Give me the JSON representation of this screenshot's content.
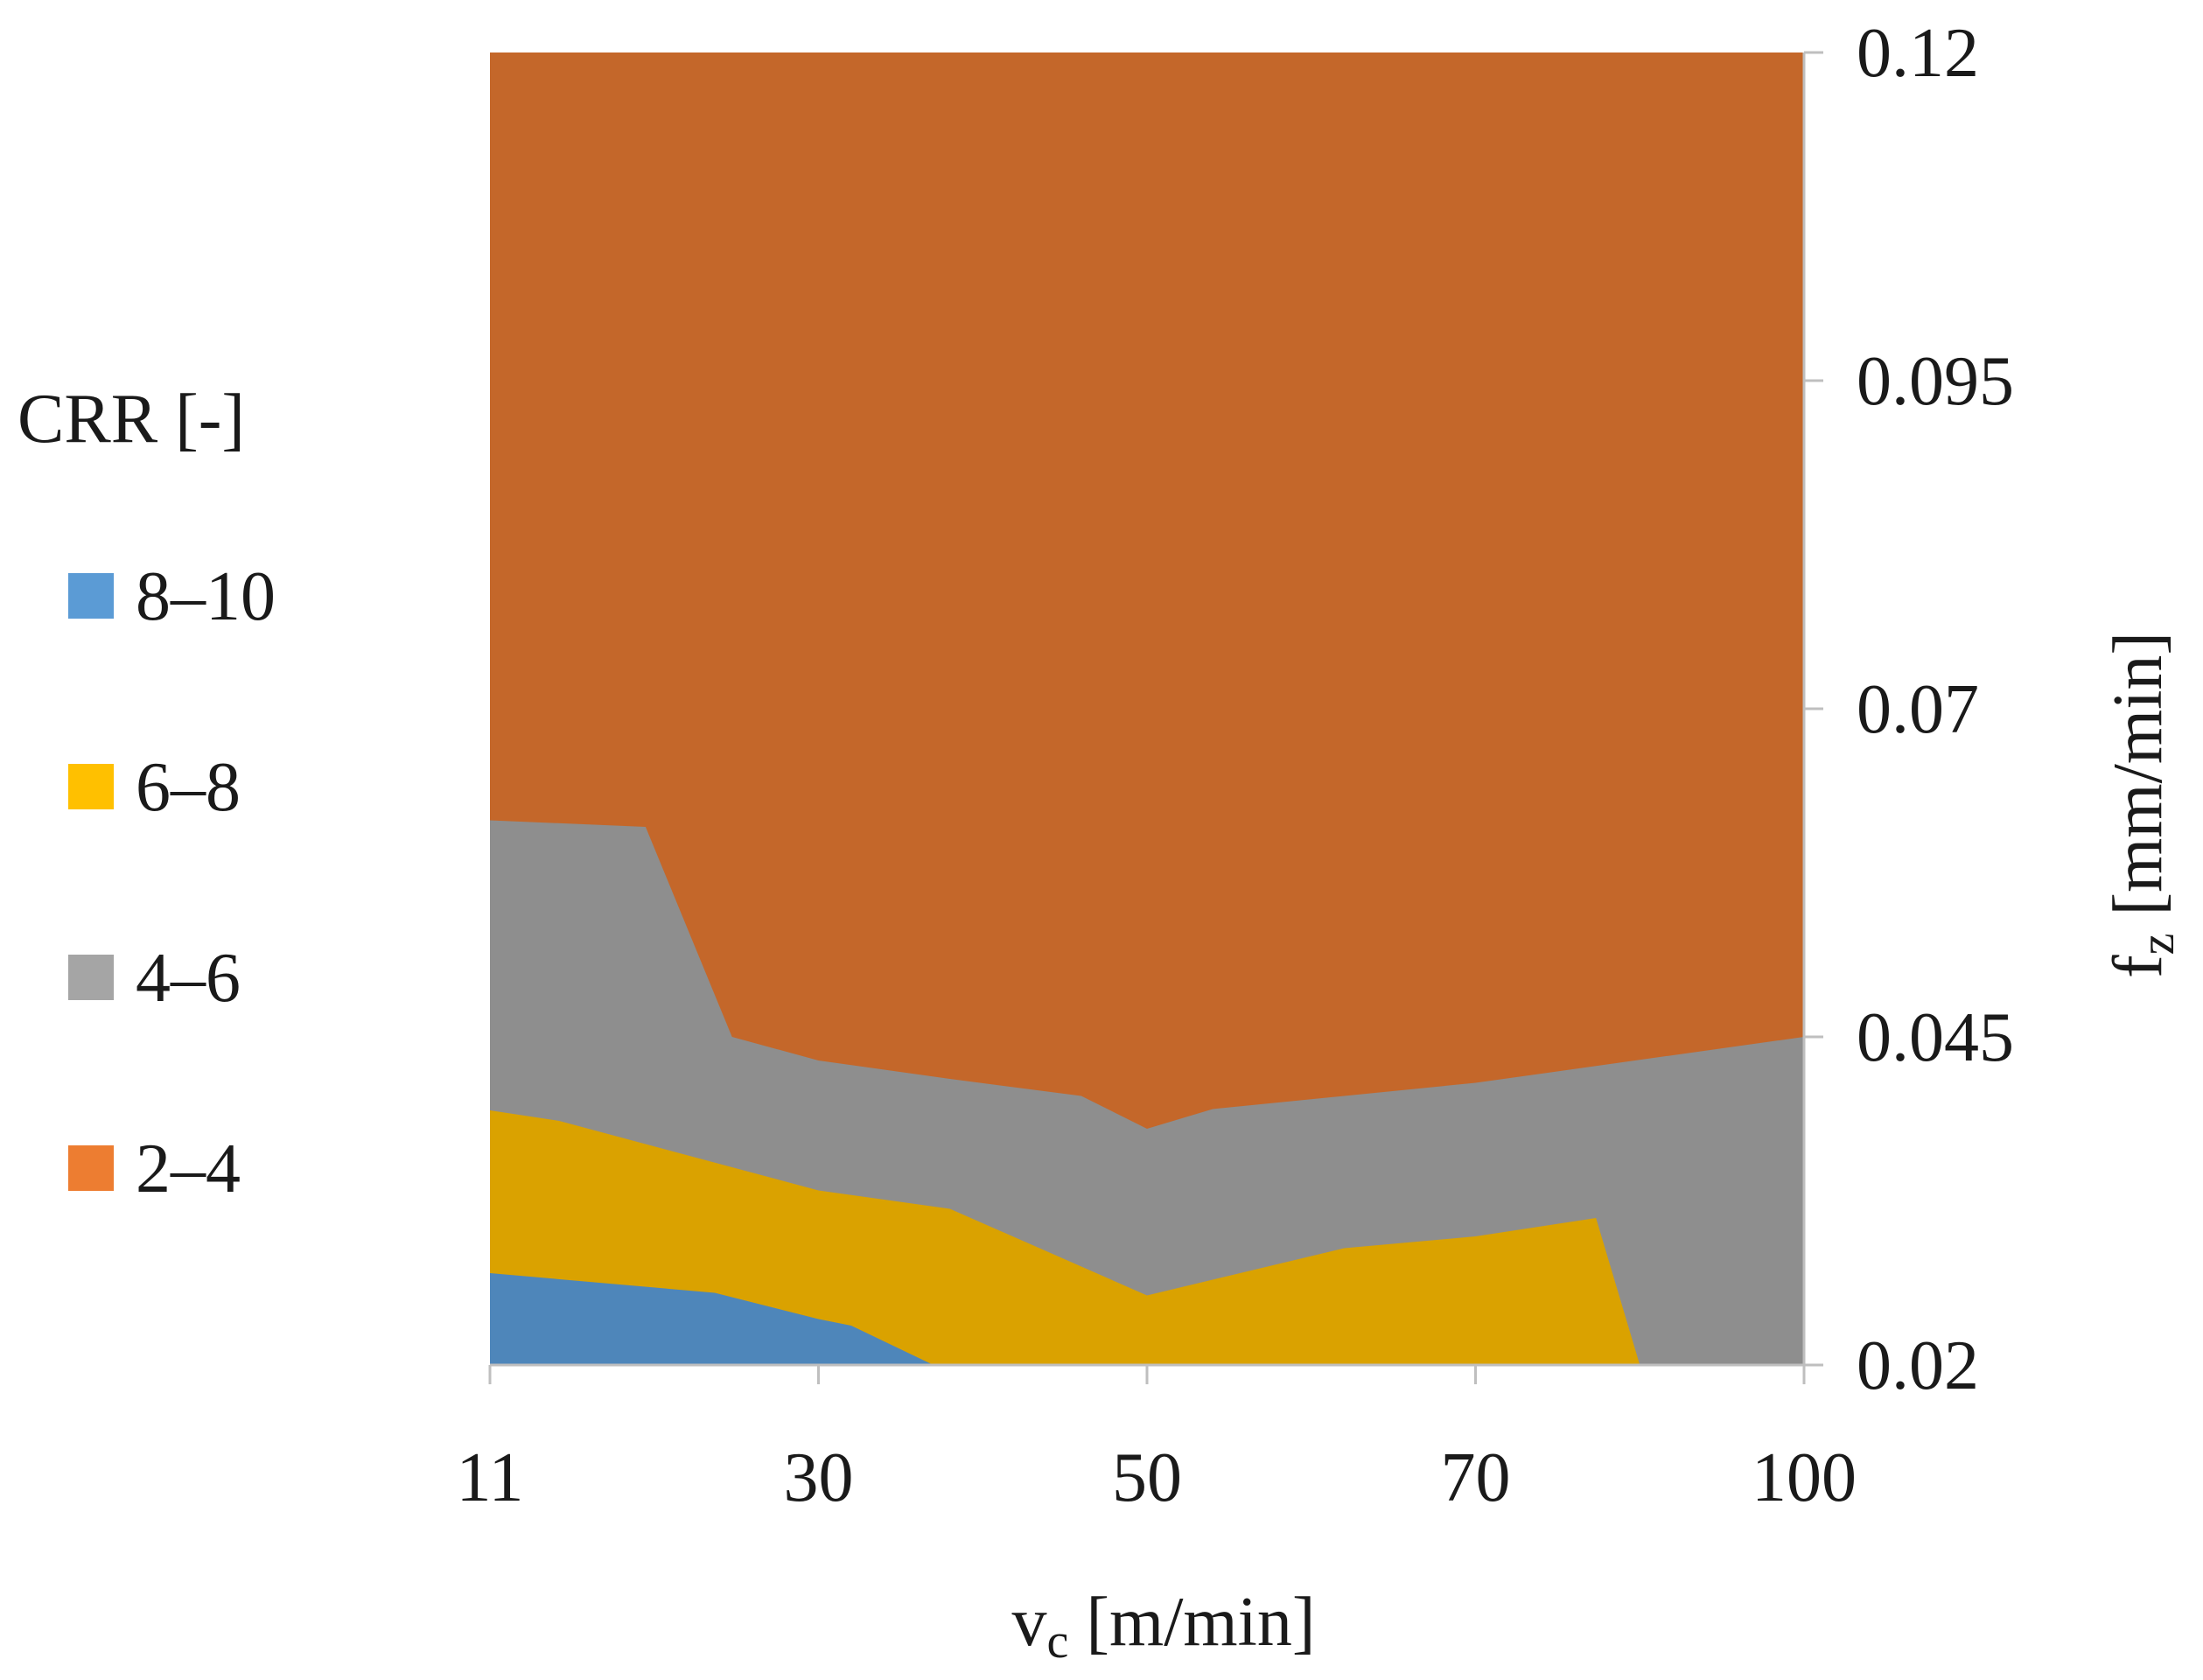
{
  "chart_data": {
    "type": "area",
    "subtype": "contour",
    "title": "",
    "xlabel": "v",
    "xlabel_subscript": "c",
    "xlabel_units": " [m/min]",
    "ylabel": "f",
    "ylabel_subscript": "z",
    "ylabel_units": " [mm/min]",
    "y_axis_side": "right",
    "x_ticks": [
      "11",
      "30",
      "50",
      "70",
      "100"
    ],
    "y_ticks": [
      "0.02",
      "0.045",
      "0.07",
      "0.095",
      "0.12"
    ],
    "x_scale": "categorical-evenly-spaced",
    "ylim": [
      0.02,
      0.12
    ],
    "grid": false,
    "legend": {
      "title": "CRR  [-]",
      "placement": "left",
      "entries": [
        {
          "label": "8–10",
          "color": "#5b9bd5"
        },
        {
          "label": "6–8",
          "color": "#ffc000"
        },
        {
          "label": "4–6",
          "color": "#a5a5a5"
        },
        {
          "label": "2–4",
          "color": "#ed7d31"
        }
      ]
    },
    "series": [
      {
        "name": "2–4",
        "fill": "#c4672a",
        "boundary": [
          {
            "x": 11,
            "y": 0.12
          },
          {
            "x": 100,
            "y": 0.12
          }
        ]
      },
      {
        "name": "4–6",
        "fill": "#8e8e8e",
        "boundary": [
          {
            "x": 11,
            "y": 0.0615
          },
          {
            "x": 20,
            "y": 0.061
          },
          {
            "x": 25,
            "y": 0.045
          },
          {
            "x": 30,
            "y": 0.0432
          },
          {
            "x": 38,
            "y": 0.0418
          },
          {
            "x": 46,
            "y": 0.0405
          },
          {
            "x": 50,
            "y": 0.038
          },
          {
            "x": 54,
            "y": 0.0395
          },
          {
            "x": 70,
            "y": 0.0415
          },
          {
            "x": 100,
            "y": 0.045
          }
        ]
      },
      {
        "name": "6–8",
        "fill": "#daa200",
        "boundary": [
          {
            "x": 11,
            "y": 0.0394
          },
          {
            "x": 15,
            "y": 0.0386
          },
          {
            "x": 30,
            "y": 0.0333
          },
          {
            "x": 38,
            "y": 0.0319
          },
          {
            "x": 50,
            "y": 0.0253
          },
          {
            "x": 62,
            "y": 0.0289
          },
          {
            "x": 70,
            "y": 0.0298
          },
          {
            "x": 81,
            "y": 0.0312
          },
          {
            "x": 85,
            "y": 0.02
          }
        ]
      },
      {
        "name": "8–10",
        "fill": "#4e86ba",
        "boundary": [
          {
            "x": 11,
            "y": 0.027
          },
          {
            "x": 24,
            "y": 0.0255
          },
          {
            "x": 30,
            "y": 0.0235
          },
          {
            "x": 32,
            "y": 0.023
          },
          {
            "x": 37,
            "y": 0.02
          }
        ]
      }
    ]
  }
}
